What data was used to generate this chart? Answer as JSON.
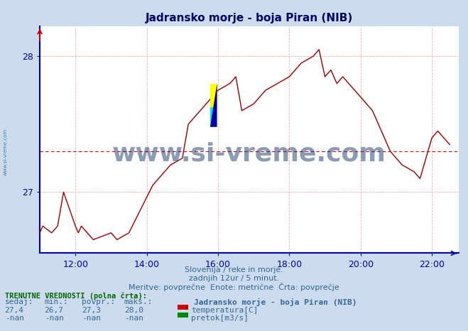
{
  "title": "Jadransko morje - boja Piran (NIB)",
  "bg_color": "#ccdcee",
  "plot_bg_color": "#ffffff",
  "line_color": "#990000",
  "grid_color_h": "#ffcccc",
  "grid_color_v": "#ddddee",
  "axis_color": "#0000aa",
  "text_color": "#000066",
  "title_color": "#000066",
  "footer_color": "#336699",
  "watermark": "www.si-vreme.com",
  "watermark_color": "#1a3a6a",
  "xmin": 11.0,
  "xmax": 22.75,
  "ymin": 26.55,
  "ymax": 28.22,
  "yticks": [
    27.0,
    28.0
  ],
  "xtick_labels": [
    "12:00",
    "14:00",
    "16:00",
    "18:00",
    "20:00",
    "22:00"
  ],
  "xtick_positions": [
    12.0,
    14.0,
    16.0,
    18.0,
    20.0,
    22.0
  ],
  "avg_value": 27.3,
  "footer_lines": [
    "Slovenija / reke in morje.",
    "zadnjih 12ur / 5 minut.",
    "Meritve: povprečne  Enote: metrične  Črta: povprečje"
  ],
  "bottom_label": "TRENUTNE VREDNOSTI (polna črta):",
  "col_headers": [
    "sedaj:",
    "min.:",
    "povpr.:",
    "maks.:"
  ],
  "temp_values": [
    "27,4",
    "26,7",
    "27,3",
    "28,0"
  ],
  "flow_values": [
    "-nan",
    "-nan",
    "-nan",
    "-nan"
  ],
  "legend_station": "Jadransko morje - boja Piran (NIB)",
  "legend_temp_color": "#cc0000",
  "legend_flow_color": "#008800",
  "temp_data_x": [
    11.0,
    11.0,
    11.083,
    11.083,
    11.333,
    11.333,
    11.5,
    11.5,
    11.667,
    11.667,
    12.0,
    12.0,
    12.083,
    12.083,
    12.167,
    12.167,
    12.333,
    12.333,
    12.5,
    12.5,
    13.0,
    13.0,
    13.167,
    13.167,
    13.5,
    13.5,
    14.167,
    14.167,
    14.333,
    14.333,
    14.5,
    14.5,
    14.667,
    14.667,
    15.0,
    15.0,
    15.167,
    15.167,
    15.333,
    15.333,
    15.5,
    15.5,
    15.667,
    15.667,
    15.833,
    15.833,
    16.0,
    16.0,
    16.333,
    16.333,
    16.5,
    16.5,
    16.667,
    16.667,
    17.0,
    17.0,
    17.167,
    17.167,
    17.333,
    17.333,
    17.667,
    17.667,
    18.0,
    18.0,
    18.167,
    18.167,
    18.333,
    18.333,
    18.667,
    18.667,
    18.833,
    18.833,
    19.0,
    19.0,
    19.167,
    19.167,
    19.333,
    19.333,
    19.5,
    19.5,
    19.667,
    19.667,
    19.833,
    19.833,
    20.0,
    20.0,
    20.167,
    20.167,
    20.333,
    20.333,
    20.5,
    20.5,
    20.667,
    20.667,
    20.833,
    20.833,
    21.0,
    21.0,
    21.167,
    21.167,
    21.5,
    21.5,
    21.667,
    21.667,
    22.0,
    22.0,
    22.167,
    22.167,
    22.333,
    22.333,
    22.5
  ],
  "temp_data_y": [
    26.7,
    26.7,
    26.75,
    26.75,
    26.7,
    26.7,
    26.75,
    26.75,
    27.0,
    27.0,
    26.75,
    26.75,
    26.7,
    26.7,
    26.75,
    26.75,
    26.7,
    26.7,
    26.65,
    26.65,
    26.7,
    26.7,
    26.65,
    26.65,
    26.7,
    26.7,
    27.05,
    27.05,
    27.1,
    27.1,
    27.15,
    27.15,
    27.2,
    27.2,
    27.25,
    27.25,
    27.5,
    27.5,
    27.55,
    27.55,
    27.6,
    27.6,
    27.65,
    27.65,
    27.7,
    27.7,
    27.75,
    27.75,
    27.8,
    27.8,
    27.85,
    27.85,
    27.6,
    27.6,
    27.65,
    27.65,
    27.7,
    27.7,
    27.75,
    27.75,
    27.8,
    27.8,
    27.85,
    27.85,
    27.9,
    27.9,
    27.95,
    27.95,
    28.0,
    28.0,
    28.05,
    28.05,
    27.85,
    27.85,
    27.9,
    27.9,
    27.8,
    27.8,
    27.85,
    27.85,
    27.8,
    27.8,
    27.75,
    27.75,
    27.7,
    27.7,
    27.65,
    27.65,
    27.6,
    27.6,
    27.5,
    27.5,
    27.4,
    27.4,
    27.3,
    27.3,
    27.25,
    27.25,
    27.2,
    27.2,
    27.15,
    27.15,
    27.1,
    27.1,
    27.4,
    27.4,
    27.45,
    27.45,
    27.4,
    27.4,
    27.35
  ]
}
